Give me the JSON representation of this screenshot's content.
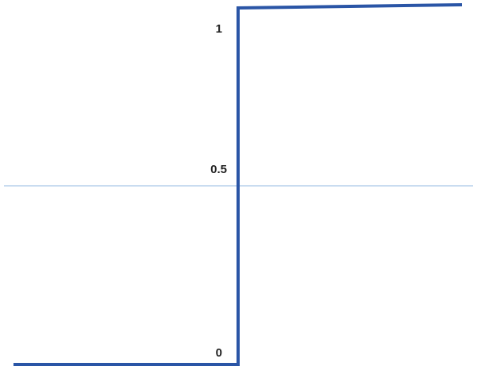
{
  "chart_data": {
    "type": "line",
    "title": "",
    "xlabel": "",
    "ylabel": "",
    "ylim": [
      0,
      1
    ],
    "y_ticks": [
      {
        "value": 1,
        "label": "1"
      },
      {
        "value": 0.5,
        "label": "0.5"
      },
      {
        "value": 0,
        "label": "0"
      }
    ],
    "reference_line": {
      "value": 0.5,
      "color": "#a9c6e6"
    },
    "grid": false,
    "legend": "none",
    "series": [
      {
        "color": "#2a55a6",
        "x": [
          -1,
          0,
          0,
          1
        ],
        "y": [
          0,
          0,
          1,
          1
        ]
      }
    ]
  }
}
